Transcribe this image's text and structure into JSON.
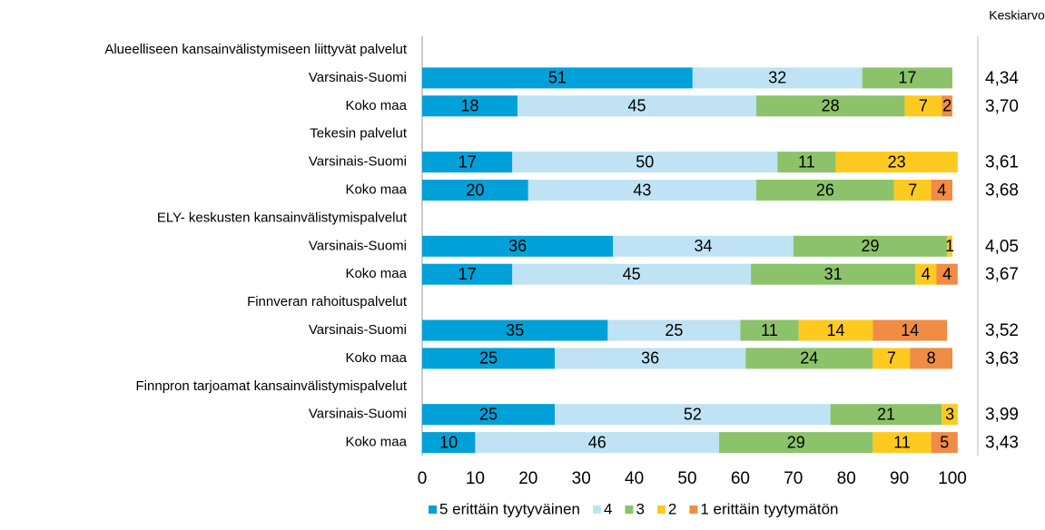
{
  "chart_data": {
    "type": "stacked-bar-horizontal",
    "categories": [
      "Alueelliseen kansainvälistymiseen liittyvät palvelut",
      "Varsinais-Suomi",
      "Koko maa",
      "Tekesin palvelut",
      "Varsinais-Suomi",
      "Koko maa",
      "ELY- keskusten kansainvälistymispalvelut",
      "Varsinais-Suomi",
      "Koko maa",
      "Finnveran rahoituspalvelut",
      "Varsinais-Suomi",
      "Koko maa",
      "Finnpron tarjoamat kansainvälistymispalvelut",
      "Varsinais-Suomi",
      "Koko maa"
    ],
    "series": [
      {
        "name": "5 erittäin tyytyväinen",
        "color": "#00a0d8",
        "values": [
          null,
          51,
          18,
          null,
          17,
          20,
          null,
          36,
          17,
          null,
          35,
          25,
          null,
          25,
          10
        ]
      },
      {
        "name": "4",
        "color": "#bfe3f4",
        "values": [
          null,
          32,
          45,
          null,
          50,
          43,
          null,
          34,
          45,
          null,
          25,
          36,
          null,
          52,
          46
        ]
      },
      {
        "name": "3",
        "color": "#8cc36a",
        "values": [
          null,
          17,
          28,
          null,
          11,
          26,
          null,
          29,
          31,
          null,
          11,
          24,
          null,
          21,
          29
        ]
      },
      {
        "name": "2",
        "color": "#ffca1f",
        "values": [
          null,
          null,
          7,
          null,
          23,
          7,
          null,
          1,
          4,
          null,
          14,
          7,
          null,
          3,
          11
        ]
      },
      {
        "name": "1 erittäin tyytymätön",
        "color": "#f08c44",
        "values": [
          null,
          null,
          2,
          null,
          null,
          4,
          null,
          null,
          4,
          null,
          14,
          8,
          null,
          null,
          5
        ]
      }
    ],
    "averages": {
      "title": "Keskiarvo",
      "values": [
        null,
        4.34,
        3.7,
        null,
        3.61,
        3.68,
        null,
        4.05,
        3.67,
        null,
        3.52,
        3.63,
        null,
        3.99,
        3.43
      ],
      "value_labels": [
        null,
        "4,34",
        "3,70",
        null,
        "3,61",
        "3,68",
        null,
        "4,05",
        "3,67",
        null,
        "3,52",
        "3,63",
        null,
        "3,99",
        "3,43"
      ]
    },
    "xlim": [
      0,
      100
    ],
    "xticks": [
      0,
      10,
      20,
      30,
      40,
      50,
      60,
      70,
      80,
      90,
      100
    ],
    "legend": "bottom"
  }
}
